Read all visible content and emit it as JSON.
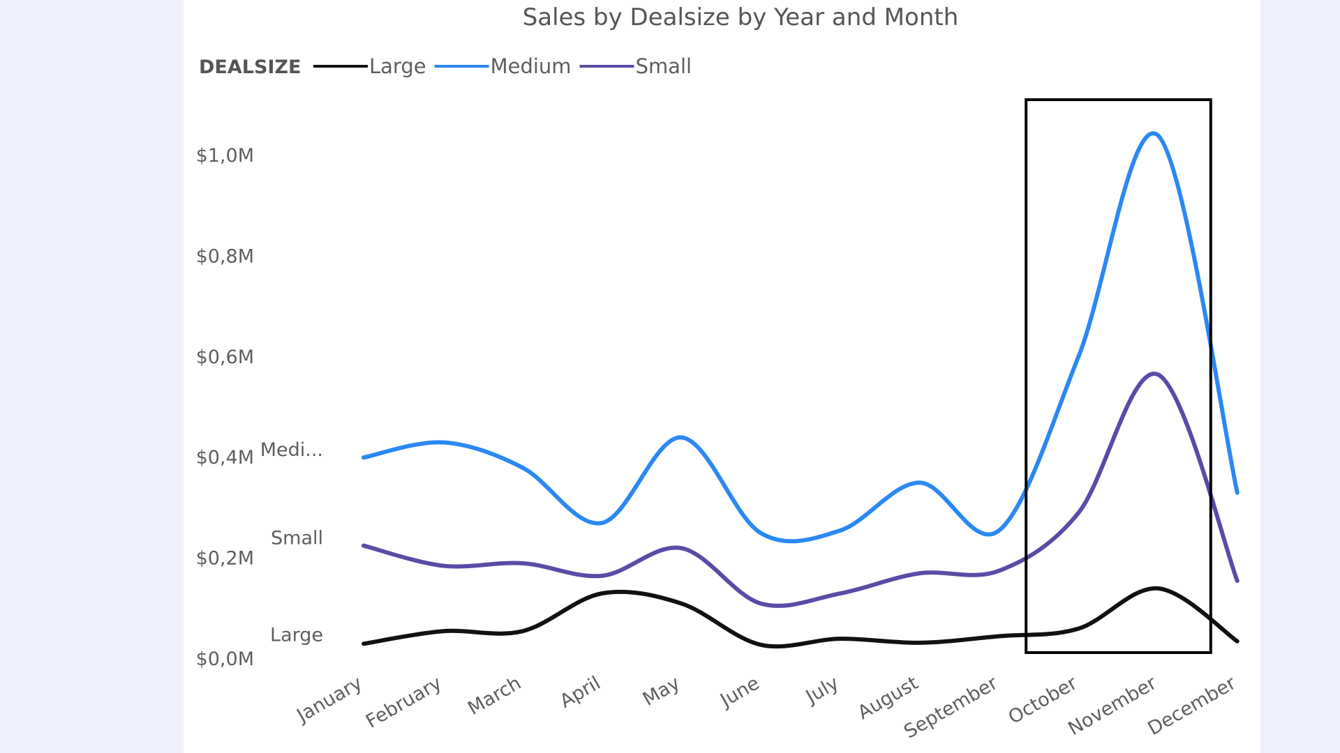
{
  "chart_data": {
    "type": "line",
    "title": "Sales by Dealsize by Year and Month",
    "legend_title": "DEALSIZE",
    "legend_position": "top-left",
    "categories": [
      "January",
      "February",
      "March",
      "April",
      "May",
      "June",
      "July",
      "August",
      "September",
      "October",
      "November",
      "December"
    ],
    "y_ticks": [
      "$0,0M",
      "$0,2M",
      "$0,4M",
      "$0,6M",
      "$0,8M",
      "$1,0M"
    ],
    "ylim": [
      0,
      1.1
    ],
    "grid": false,
    "series": [
      {
        "name": "Large",
        "color": "#111111",
        "end_label": "Large",
        "values": [
          0.03,
          0.055,
          0.055,
          0.13,
          0.11,
          0.028,
          0.04,
          0.032,
          0.045,
          0.06,
          0.14,
          0.035
        ]
      },
      {
        "name": "Medium",
        "color": "#2b88f3",
        "end_label": "Medi...",
        "values": [
          0.4,
          0.43,
          0.38,
          0.27,
          0.44,
          0.25,
          0.255,
          0.35,
          0.255,
          0.6,
          1.04,
          0.33
        ]
      },
      {
        "name": "Small",
        "color": "#5b4aa6",
        "end_label": "Small",
        "values": [
          0.225,
          0.185,
          0.19,
          0.165,
          0.22,
          0.11,
          0.13,
          0.17,
          0.175,
          0.29,
          0.565,
          0.155
        ]
      }
    ],
    "annotations": [
      {
        "type": "box",
        "from_category": "October",
        "to_category": "December",
        "color": "#000000"
      }
    ]
  }
}
